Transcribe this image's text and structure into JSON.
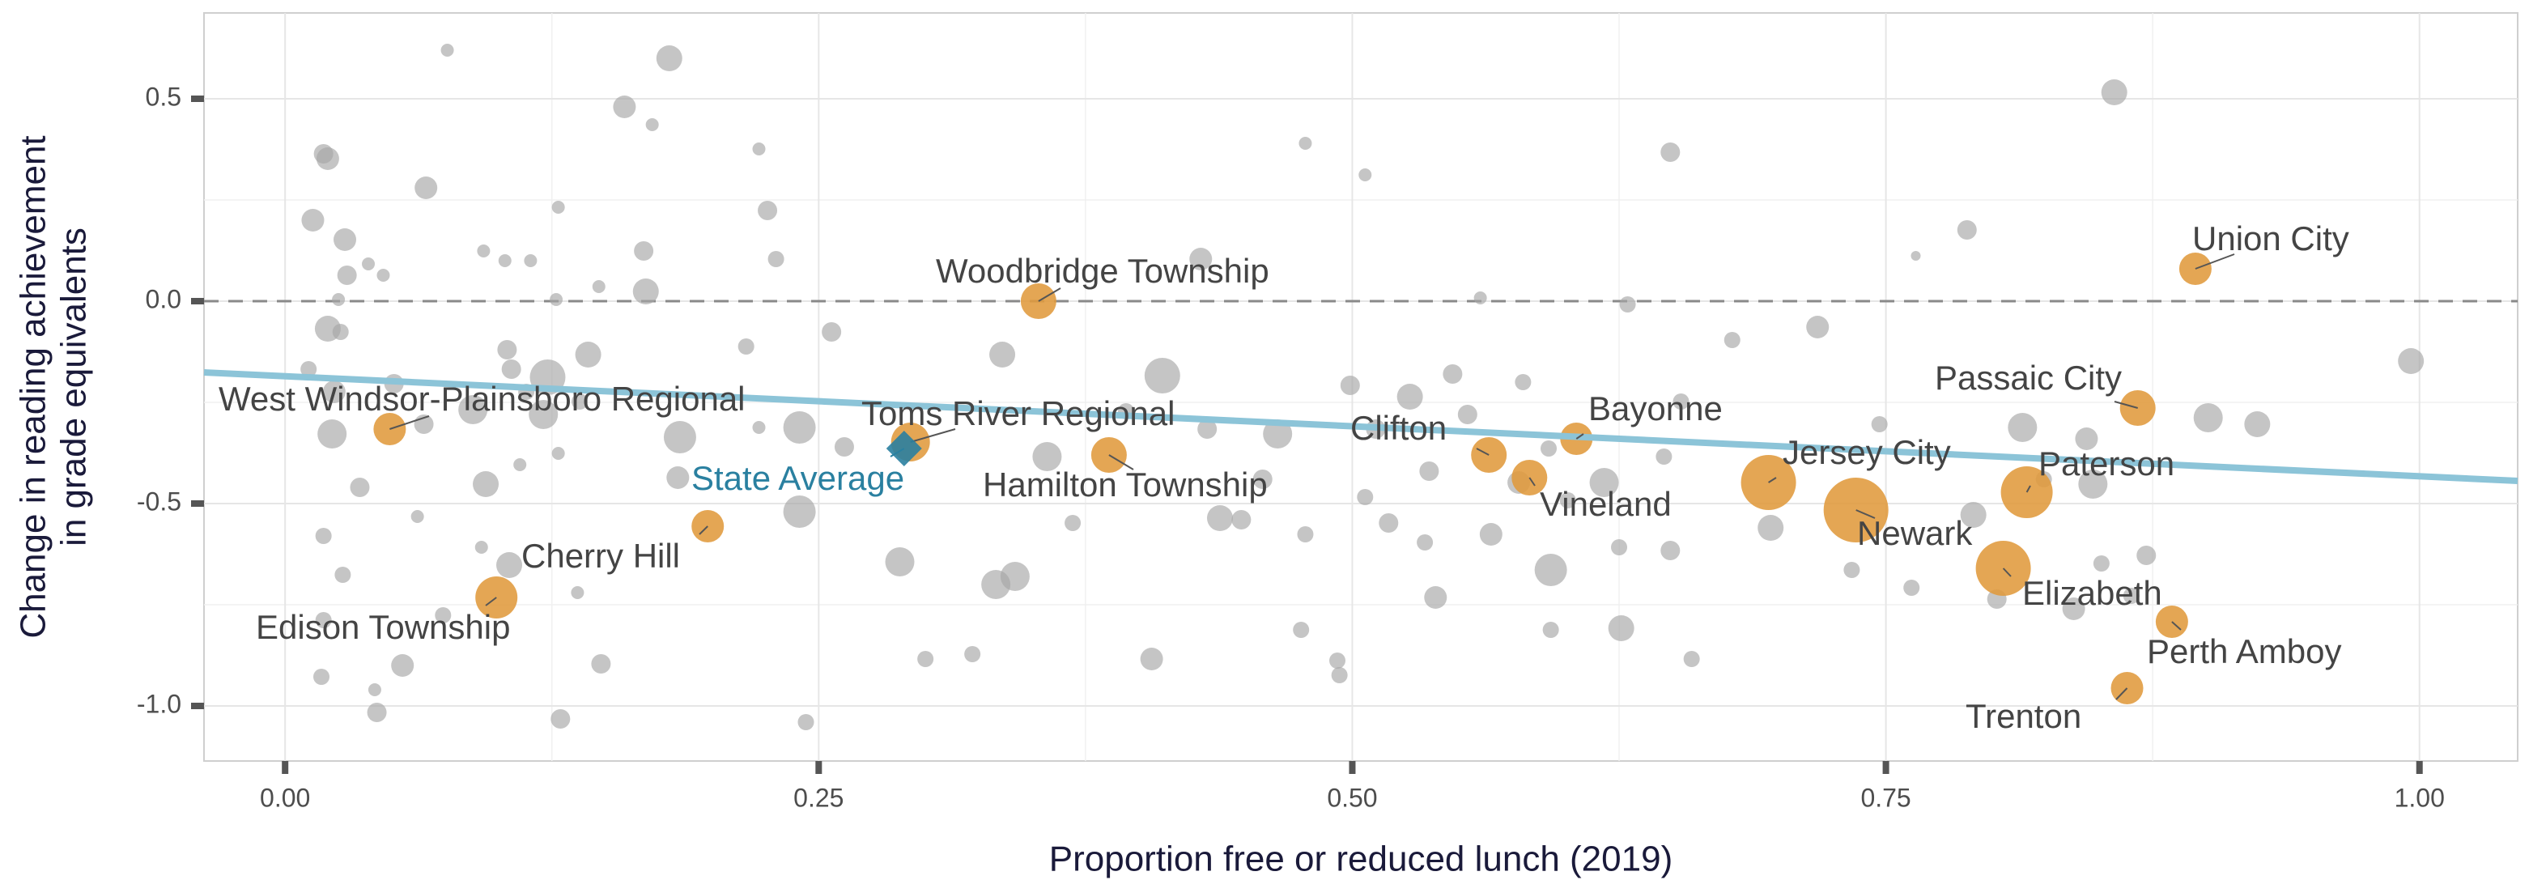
{
  "chart_data": {
    "type": "scatter",
    "xlabel": "Proportion free or reduced lunch (2019)",
    "ylabel": [
      "Change in reading  achievement",
      "in grade equivalents"
    ],
    "xlim": [
      -0.038,
      1.046
    ],
    "ylim": [
      -1.136,
      0.712
    ],
    "xticks": [
      {
        "value": 0,
        "label": "0.00"
      },
      {
        "value": 0.25,
        "label": "0.25"
      },
      {
        "value": 0.5,
        "label": "0.50"
      },
      {
        "value": 0.75,
        "label": "0.75"
      },
      {
        "value": 1,
        "label": "1.00"
      }
    ],
    "yticks": [
      {
        "value": -1,
        "label": "-1.0"
      },
      {
        "value": -0.5,
        "label": "-0.5"
      },
      {
        "value": 0,
        "label": "0.0"
      },
      {
        "value": 0.5,
        "label": "0.5"
      }
    ],
    "grid": true,
    "minor_grid": true,
    "hline": 0,
    "trend": {
      "color": "#8cc4d8",
      "x": [
        -0.038,
        1.046
      ],
      "y": [
        -0.176,
        -0.444
      ]
    },
    "series": [
      {
        "name": "Districts",
        "color": "#a6a6a6",
        "points": [
          [
            0.076,
            0.62,
            4
          ],
          [
            0.18,
            0.6,
            8
          ],
          [
            0.159,
            0.48,
            7
          ],
          [
            0.172,
            0.436,
            4
          ],
          [
            0.018,
            0.364,
            6
          ],
          [
            0.02,
            0.352,
            7
          ],
          [
            0.066,
            0.28,
            7
          ],
          [
            0.093,
            0.124,
            4
          ],
          [
            0.013,
            0.2,
            7
          ],
          [
            0.028,
            0.152,
            7
          ],
          [
            0.039,
            0.092,
            4
          ],
          [
            0.029,
            0.064,
            6
          ],
          [
            0.046,
            0.064,
            4
          ],
          [
            0.025,
            0.004,
            4
          ],
          [
            0.02,
            -0.068,
            8
          ],
          [
            0.026,
            -0.076,
            5
          ],
          [
            0.011,
            -0.168,
            5
          ],
          [
            0.023,
            -0.224,
            7
          ],
          [
            0.051,
            -0.204,
            6
          ],
          [
            0.022,
            -0.328,
            9
          ],
          [
            0.035,
            -0.46,
            6
          ],
          [
            0.062,
            -0.532,
            4
          ],
          [
            0.018,
            -0.58,
            5
          ],
          [
            0.027,
            -0.676,
            5
          ],
          [
            0.018,
            -0.788,
            5
          ],
          [
            0.017,
            -0.928,
            5
          ],
          [
            0.042,
            -0.96,
            4
          ],
          [
            0.043,
            -1.016,
            6
          ],
          [
            0.055,
            -0.9,
            7
          ],
          [
            0.074,
            -0.776,
            5
          ],
          [
            0.092,
            -0.608,
            4
          ],
          [
            0.094,
            -0.452,
            8
          ],
          [
            0.088,
            -0.268,
            9
          ],
          [
            0.065,
            -0.304,
            6
          ],
          [
            0.106,
            -0.168,
            6
          ],
          [
            0.104,
            -0.12,
            6
          ],
          [
            0.113,
            -0.224,
            5
          ],
          [
            0.121,
            -0.28,
            9
          ],
          [
            0.123,
            -0.188,
            11
          ],
          [
            0.142,
            -0.132,
            8
          ],
          [
            0.138,
            -0.248,
            5
          ],
          [
            0.128,
            -0.376,
            4
          ],
          [
            0.11,
            -0.404,
            4
          ],
          [
            0.105,
            -0.652,
            8
          ],
          [
            0.137,
            -0.72,
            4
          ],
          [
            0.148,
            -0.896,
            6
          ],
          [
            0.129,
            -1.032,
            6
          ],
          [
            0.169,
            0.024,
            8
          ],
          [
            0.147,
            0.036,
            4
          ],
          [
            0.168,
            0.124,
            6
          ],
          [
            0.128,
            0.232,
            4
          ],
          [
            0.127,
            0.004,
            4
          ],
          [
            0.103,
            0.1,
            4
          ],
          [
            0.115,
            0.1,
            4
          ],
          [
            0.184,
            -0.436,
            7
          ],
          [
            0.185,
            -0.336,
            10
          ],
          [
            0.216,
            -0.112,
            5
          ],
          [
            0.222,
            -0.312,
            4
          ],
          [
            0.226,
            0.224,
            6
          ],
          [
            0.222,
            0.376,
            4
          ],
          [
            0.23,
            0.104,
            5
          ],
          [
            0.241,
            -0.312,
            10
          ],
          [
            0.241,
            -0.52,
            10
          ],
          [
            0.244,
            -1.04,
            5
          ],
          [
            0.256,
            -0.076,
            6
          ],
          [
            0.262,
            -0.36,
            6
          ],
          [
            0.288,
            -0.644,
            9
          ],
          [
            0.3,
            -0.884,
            5
          ],
          [
            0.322,
            -0.872,
            5
          ],
          [
            0.333,
            -0.7,
            9
          ],
          [
            0.342,
            -0.68,
            9
          ],
          [
            0.336,
            -0.132,
            8
          ],
          [
            0.357,
            -0.384,
            9
          ],
          [
            0.369,
            -0.548,
            5
          ],
          [
            0.394,
            -0.272,
            5
          ],
          [
            0.406,
            -0.884,
            7
          ],
          [
            0.411,
            -0.184,
            11
          ],
          [
            0.429,
            0.104,
            7
          ],
          [
            0.432,
            -0.316,
            6
          ],
          [
            0.438,
            -0.536,
            8
          ],
          [
            0.448,
            -0.54,
            6
          ],
          [
            0.465,
            -0.328,
            9
          ],
          [
            0.458,
            -0.44,
            6
          ],
          [
            0.478,
            -0.576,
            5
          ],
          [
            0.476,
            -0.812,
            5
          ],
          [
            0.478,
            0.39,
            4
          ],
          [
            0.493,
            -0.888,
            5
          ],
          [
            0.494,
            -0.924,
            5
          ],
          [
            0.499,
            -0.208,
            6
          ],
          [
            0.506,
            -0.484,
            5
          ],
          [
            0.506,
            0.312,
            4
          ],
          [
            0.511,
            -0.316,
            6
          ],
          [
            0.517,
            -0.548,
            6
          ],
          [
            0.527,
            -0.236,
            8
          ],
          [
            0.536,
            -0.42,
            6
          ],
          [
            0.539,
            -0.732,
            7
          ],
          [
            0.534,
            -0.596,
            5
          ],
          [
            0.547,
            -0.18,
            6
          ],
          [
            0.554,
            -0.28,
            6
          ],
          [
            0.56,
            0.008,
            4
          ],
          [
            0.565,
            -0.576,
            7
          ],
          [
            0.578,
            -0.448,
            7
          ],
          [
            0.58,
            -0.2,
            5
          ],
          [
            0.592,
            -0.364,
            5
          ],
          [
            0.593,
            -0.664,
            10
          ],
          [
            0.593,
            -0.812,
            5
          ],
          [
            0.601,
            -0.492,
            5
          ],
          [
            0.618,
            -0.448,
            9
          ],
          [
            0.625,
            -0.608,
            5
          ],
          [
            0.629,
            -0.008,
            5
          ],
          [
            0.626,
            -0.808,
            8
          ],
          [
            0.646,
            -0.384,
            5
          ],
          [
            0.649,
            -0.616,
            6
          ],
          [
            0.649,
            0.368,
            6
          ],
          [
            0.654,
            -0.248,
            5
          ],
          [
            0.659,
            -0.884,
            5
          ],
          [
            0.678,
            -0.096,
            5
          ],
          [
            0.696,
            -0.56,
            8
          ],
          [
            0.718,
            -0.064,
            7
          ],
          [
            0.734,
            -0.664,
            5
          ],
          [
            0.747,
            -0.304,
            5
          ],
          [
            0.762,
            -0.708,
            5
          ],
          [
            0.764,
            0.112,
            3
          ],
          [
            0.788,
            0.176,
            6
          ],
          [
            0.791,
            -0.528,
            8
          ],
          [
            0.802,
            -0.736,
            6
          ],
          [
            0.814,
            -0.312,
            9
          ],
          [
            0.824,
            -0.44,
            5
          ],
          [
            0.844,
            -0.34,
            7
          ],
          [
            0.847,
            -0.452,
            9
          ],
          [
            0.851,
            -0.648,
            5
          ],
          [
            0.857,
            0.516,
            8
          ],
          [
            0.872,
            -0.628,
            6
          ],
          [
            0.901,
            -0.288,
            9
          ],
          [
            0.924,
            -0.304,
            8
          ],
          [
            0.996,
            -0.148,
            8
          ],
          [
            0.838,
            -0.76,
            7
          ],
          [
            0.865,
            -0.728,
            5
          ]
        ]
      },
      {
        "name": "Highlighted districts",
        "color": "#e09a3c",
        "labels": [
          "Union City",
          "Woodbridge Township",
          "West Windsor-Plainsboro Regional",
          "Toms River Regional",
          "Hamilton Township",
          "Clifton",
          "Bayonne",
          "Vineland",
          "Jersey City",
          "Newark",
          "Passaic City",
          "Paterson",
          "Elizabeth",
          "Perth Amboy",
          "Trenton",
          "Cherry Hill",
          "Edison Township"
        ],
        "points": [
          [
            0.895,
            0.08,
            10
          ],
          [
            0.353,
            0.0,
            11
          ],
          [
            0.049,
            -0.316,
            10
          ],
          [
            0.293,
            -0.348,
            12
          ],
          [
            0.386,
            -0.38,
            11
          ],
          [
            0.564,
            -0.38,
            11
          ],
          [
            0.605,
            -0.34,
            10
          ],
          [
            0.583,
            -0.436,
            11
          ],
          [
            0.695,
            -0.448,
            17
          ],
          [
            0.736,
            -0.516,
            20
          ],
          [
            0.868,
            -0.264,
            11
          ],
          [
            0.816,
            -0.472,
            16
          ],
          [
            0.805,
            -0.66,
            17
          ],
          [
            0.884,
            -0.792,
            10
          ],
          [
            0.863,
            -0.956,
            10
          ],
          [
            0.198,
            -0.556,
            10
          ],
          [
            0.099,
            -0.732,
            13
          ]
        ]
      }
    ],
    "state_average": {
      "label": "State Average",
      "color": "#2a80a0",
      "x": 0.29,
      "y": -0.364
    }
  }
}
